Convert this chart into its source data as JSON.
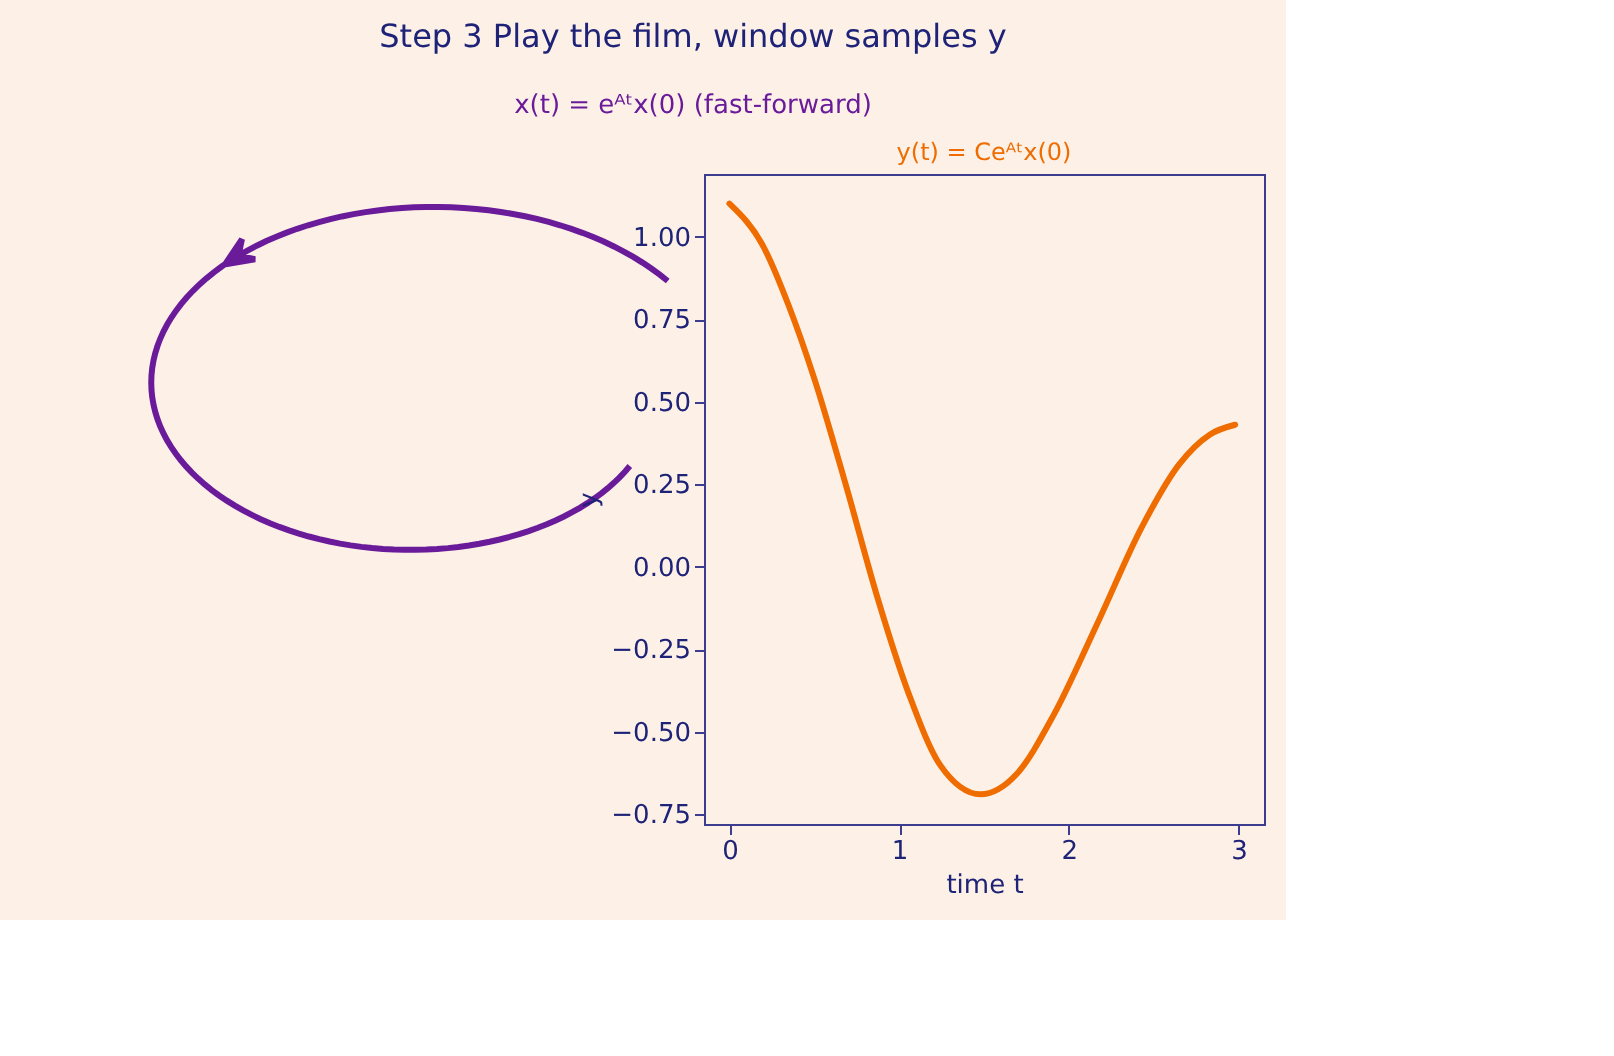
{
  "chart_data": {
    "type": "line",
    "title": "Step 3  Play the film, window samples y",
    "subtitle": "x(t) = eᴬᵗx(0)  (fast-forward)",
    "xlabel": "time t",
    "ylabel": "y",
    "x": [
      0,
      0.2,
      0.35,
      0.5,
      0.69,
      0.87,
      1.06,
      1.24,
      1.48,
      1.69,
      1.91,
      2.17,
      2.43,
      2.65,
      2.83,
      2.98
    ],
    "series": [
      {
        "name": "y(t) = Ceᴬᵗx(0)",
        "color": "#ef6c00",
        "values": [
          1.1,
          0.97,
          0.79,
          0.57,
          0.24,
          -0.09,
          -0.39,
          -0.6,
          -0.69,
          -0.63,
          -0.45,
          -0.17,
          0.12,
          0.31,
          0.4,
          0.43
        ]
      }
    ],
    "xlim": [
      -0.15,
      3.15
    ],
    "xticks": [
      0,
      1,
      2,
      3
    ],
    "ylim": [
      -0.78,
      1.19
    ],
    "yticks": [
      {
        "value": -0.75,
        "label": "−0.75"
      },
      {
        "value": -0.5,
        "label": "−0.50"
      },
      {
        "value": -0.25,
        "label": "−0.25"
      },
      {
        "value": 0,
        "label": "0.00"
      },
      {
        "value": 0.25,
        "label": "0.25"
      },
      {
        "value": 0.5,
        "label": "0.50"
      },
      {
        "value": 0.75,
        "label": "0.75"
      },
      {
        "value": 1,
        "label": "1.00"
      }
    ],
    "grid": false,
    "legend": false
  }
}
